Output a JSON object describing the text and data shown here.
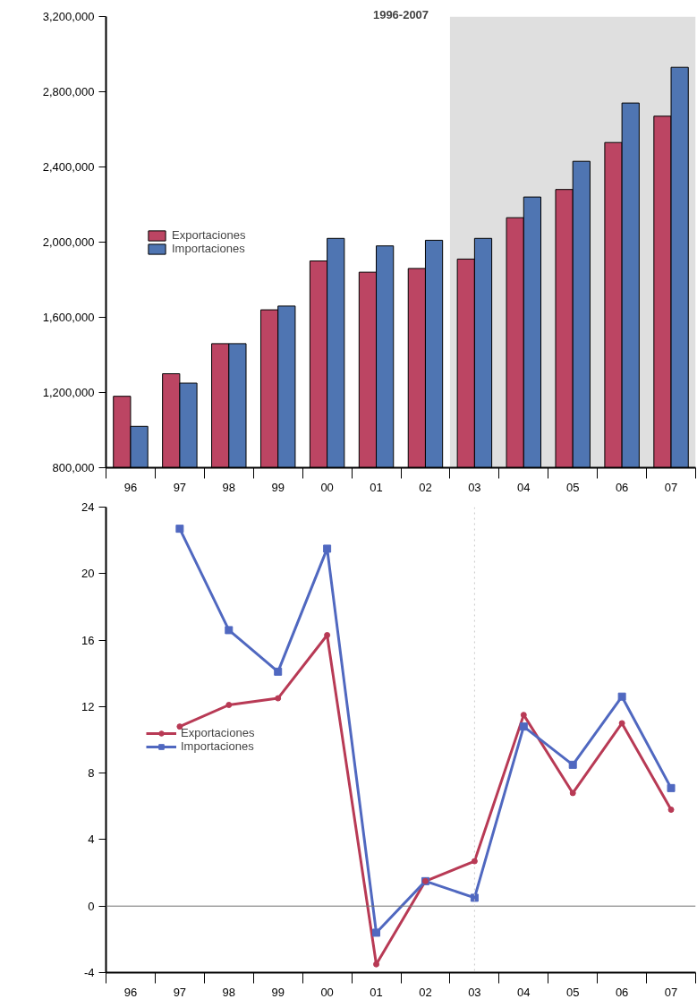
{
  "chart_data": [
    {
      "type": "bar",
      "title": "1996-2007",
      "categories": [
        "96",
        "97",
        "98",
        "99",
        "00",
        "01",
        "02",
        "03",
        "04",
        "05",
        "06",
        "07"
      ],
      "series": [
        {
          "name": "Exportaciones",
          "color": "#bc4563",
          "values": [
            1180000,
            1300000,
            1460000,
            1640000,
            1900000,
            1840000,
            1860000,
            1910000,
            2130000,
            2280000,
            2530000,
            2670000
          ]
        },
        {
          "name": "Importaciones",
          "color": "#4f75b2",
          "values": [
            1020000,
            1250000,
            1460000,
            1660000,
            2020000,
            1980000,
            2010000,
            2020000,
            2240000,
            2430000,
            2740000,
            2930000
          ]
        }
      ],
      "ylim": [
        800000,
        3200000
      ],
      "yticks": [
        {
          "value": 800000,
          "label": "800,000"
        },
        {
          "value": 1200000,
          "label": "1,200,000"
        },
        {
          "value": 1600000,
          "label": "1,600,000"
        },
        {
          "value": 2000000,
          "label": "2,000,000"
        },
        {
          "value": 2400000,
          "label": "2,400,000"
        },
        {
          "value": 2800000,
          "label": "2,800,000"
        },
        {
          "value": 3200000,
          "label": "3,200,000"
        }
      ],
      "bands": [
        {
          "axis": "x",
          "from": "03",
          "to": "07",
          "color": "#dfdfdf"
        }
      ],
      "legend": "left",
      "grid": false
    },
    {
      "type": "line",
      "categories": [
        "96",
        "97",
        "98",
        "99",
        "00",
        "01",
        "02",
        "03",
        "04",
        "05",
        "06",
        "07"
      ],
      "series": [
        {
          "name": "Exportaciones",
          "color": "#b83a55",
          "marker": "circle",
          "values": [
            null,
            10.8,
            12.1,
            12.5,
            16.3,
            -3.5,
            1.5,
            2.7,
            11.5,
            6.8,
            11.0,
            5.8
          ]
        },
        {
          "name": "Importaciones",
          "color": "#5068c0",
          "marker": "square",
          "values": [
            null,
            22.7,
            16.6,
            14.1,
            21.5,
            -1.6,
            1.5,
            0.5,
            10.8,
            8.5,
            12.6,
            7.1
          ]
        }
      ],
      "ylim": [
        -4,
        24
      ],
      "yticks": [
        -4,
        0,
        4,
        8,
        12,
        16,
        20,
        24
      ],
      "ref_lines": [
        {
          "axis": "y",
          "value": 0,
          "color": "#707070"
        },
        {
          "axis": "x",
          "value": "03",
          "color": "#c8c8c8",
          "line_style": "dotted"
        }
      ],
      "legend": "left",
      "grid": false,
      "line_style": "solid"
    }
  ]
}
